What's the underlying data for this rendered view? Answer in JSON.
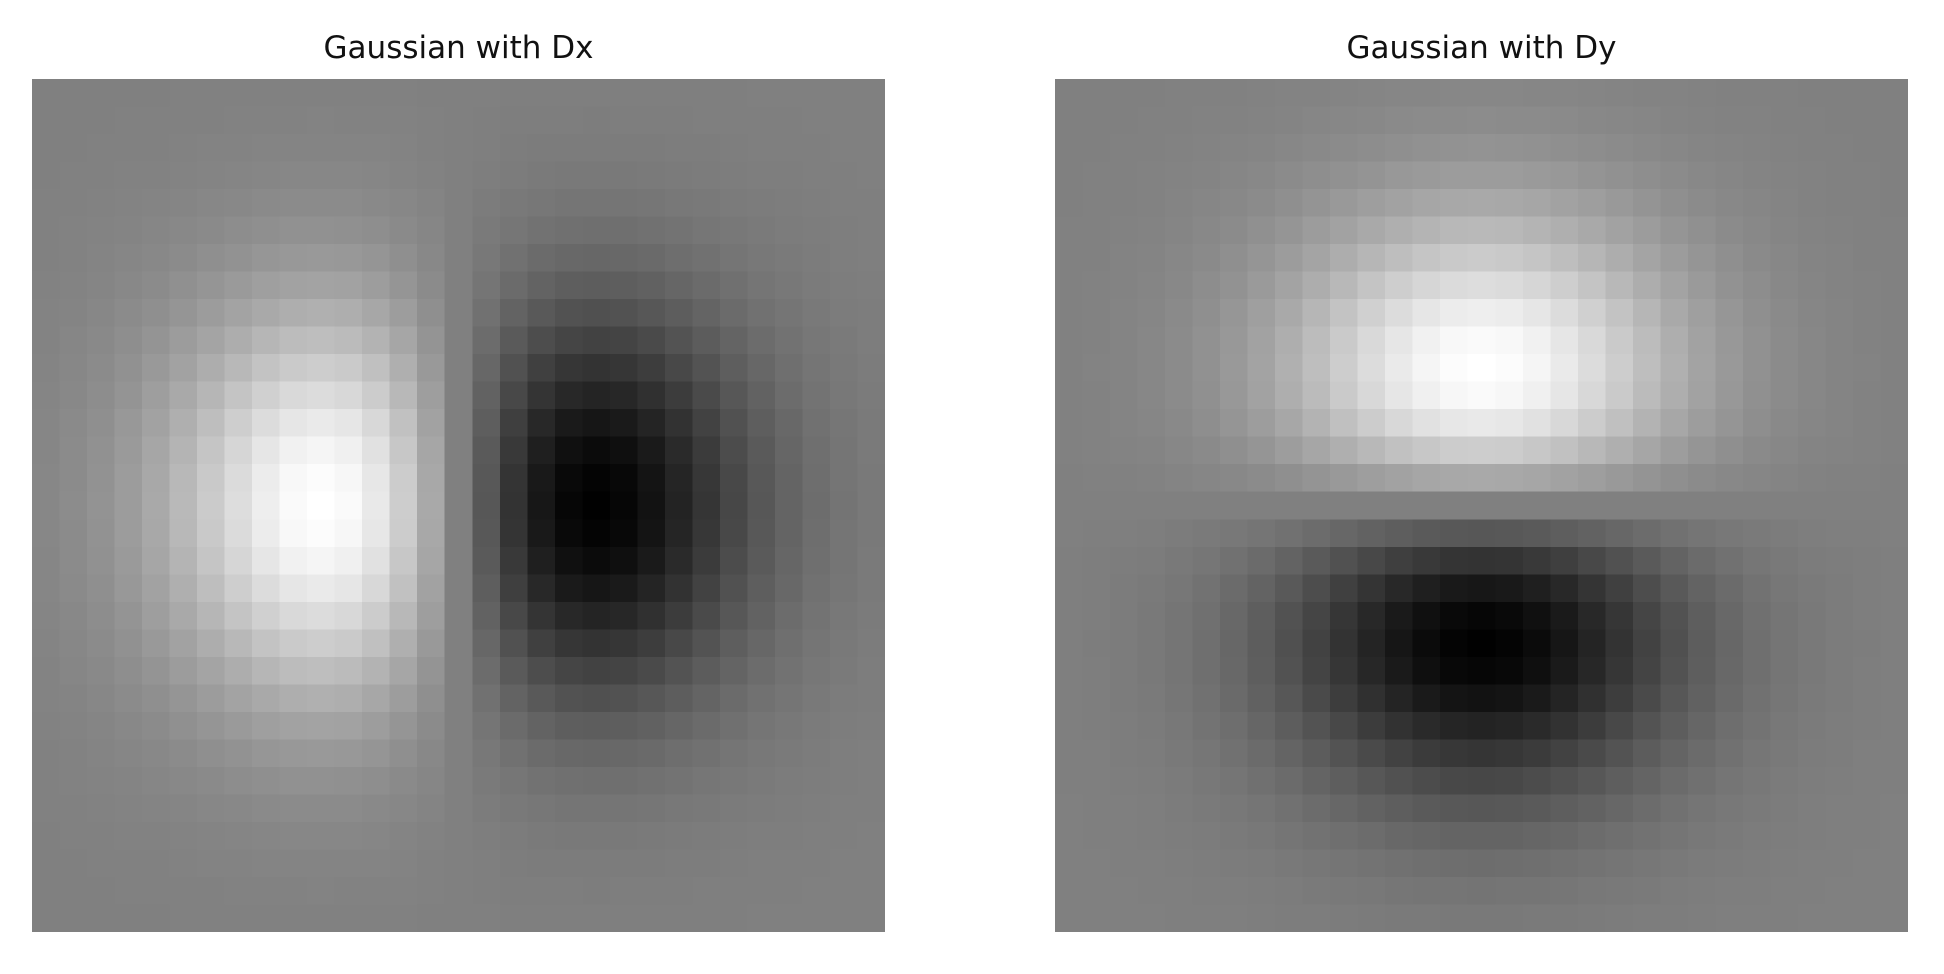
{
  "chart_data": [
    {
      "type": "heatmap",
      "title": "Gaussian with Dx",
      "colormap": "gray",
      "grid_size": 31,
      "sigma": 5,
      "derivative": "x",
      "axes_visible": false
    },
    {
      "type": "heatmap",
      "title": "Gaussian with Dy",
      "colormap": "gray",
      "grid_size": 31,
      "sigma": 5,
      "derivative": "y",
      "axes_visible": false
    }
  ]
}
